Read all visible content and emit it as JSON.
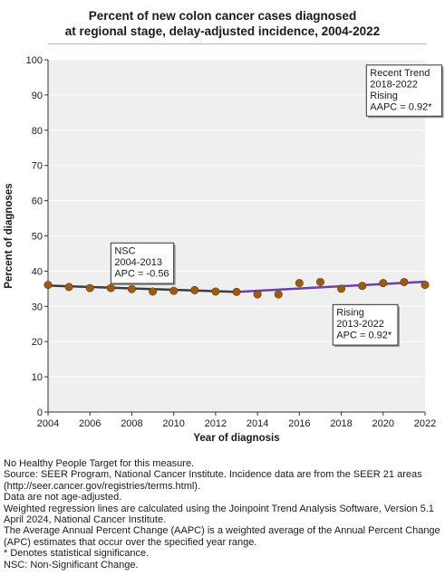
{
  "chart_data": {
    "type": "line",
    "title_lines": [
      "Percent of new colon cancer cases diagnosed",
      "at regional stage, delay-adjusted incidence, 2004-2022"
    ],
    "xlabel": "Year of diagnosis",
    "ylabel": "Percent of diagnoses",
    "xlim": [
      2004,
      2022
    ],
    "ylim": [
      0,
      100
    ],
    "x_ticks": [
      2004,
      2006,
      2008,
      2010,
      2012,
      2014,
      2016,
      2018,
      2020,
      2022
    ],
    "y_ticks": [
      0,
      10,
      20,
      30,
      40,
      50,
      60,
      70,
      80,
      90,
      100
    ],
    "grid": "horizontal",
    "colors": {
      "plot_background": "#efefef",
      "gridline": "#ffffff",
      "point": "#9a5b12",
      "point_edge": "#6b3d08",
      "segment_nsc": "#3d3d3d",
      "segment_rising": "#6a3fb0"
    },
    "points": {
      "x": [
        2004,
        2005,
        2006,
        2007,
        2008,
        2009,
        2010,
        2011,
        2012,
        2013,
        2014,
        2015,
        2016,
        2017,
        2018,
        2019,
        2020,
        2021,
        2022
      ],
      "y": [
        36.1,
        35.5,
        35.2,
        35.2,
        34.9,
        34.2,
        34.4,
        34.6,
        34.2,
        34.1,
        33.4,
        33.4,
        36.6,
        36.9,
        35.0,
        35.8,
        36.6,
        36.9,
        36.1
      ]
    },
    "segments": [
      {
        "x": [
          2004,
          2013
        ],
        "y": [
          35.9,
          34.1
        ],
        "color_key": "segment_nsc"
      },
      {
        "x": [
          2013,
          2022
        ],
        "y": [
          34.1,
          37.0
        ],
        "color_key": "segment_rising"
      }
    ],
    "annotations": [
      {
        "lines": [
          "Recent Trend",
          "2018-2022",
          "Rising",
          "AAPC =  0.92*"
        ],
        "anchor_x": 2019.2,
        "anchor_y": 98.5,
        "width_years": 3.6,
        "height_pct": 14.5
      },
      {
        "lines": [
          "NSC",
          "2004-2013",
          "APC = -0.56"
        ],
        "anchor_x": 2007.0,
        "anchor_y": 48.0,
        "width_years": 3.0,
        "height_pct": 11.5
      },
      {
        "lines": [
          "Rising",
          "2013-2022",
          "APC =  0.92*"
        ],
        "anchor_x": 2017.6,
        "anchor_y": 30.5,
        "width_years": 3.1,
        "height_pct": 11.5
      }
    ]
  },
  "notes": [
    "No Healthy People Target for this measure.",
    "Source: SEER Program, National Cancer Institute. Incidence data are from the SEER 21 areas (http://seer.cancer.gov/registries/terms.html).",
    "Data are not age-adjusted.",
    "Weighted regression lines are calculated using the Joinpoint Trend Analysis Software, Version 5.1 April 2024, National Cancer Institute.",
    "The Average Annual Percent Change (AAPC) is a weighted average of the Annual Percent Change (APC) estimates that occur over the specified year range.",
    "* Denotes statistical significance.",
    "NSC: Non-Significant Change."
  ]
}
